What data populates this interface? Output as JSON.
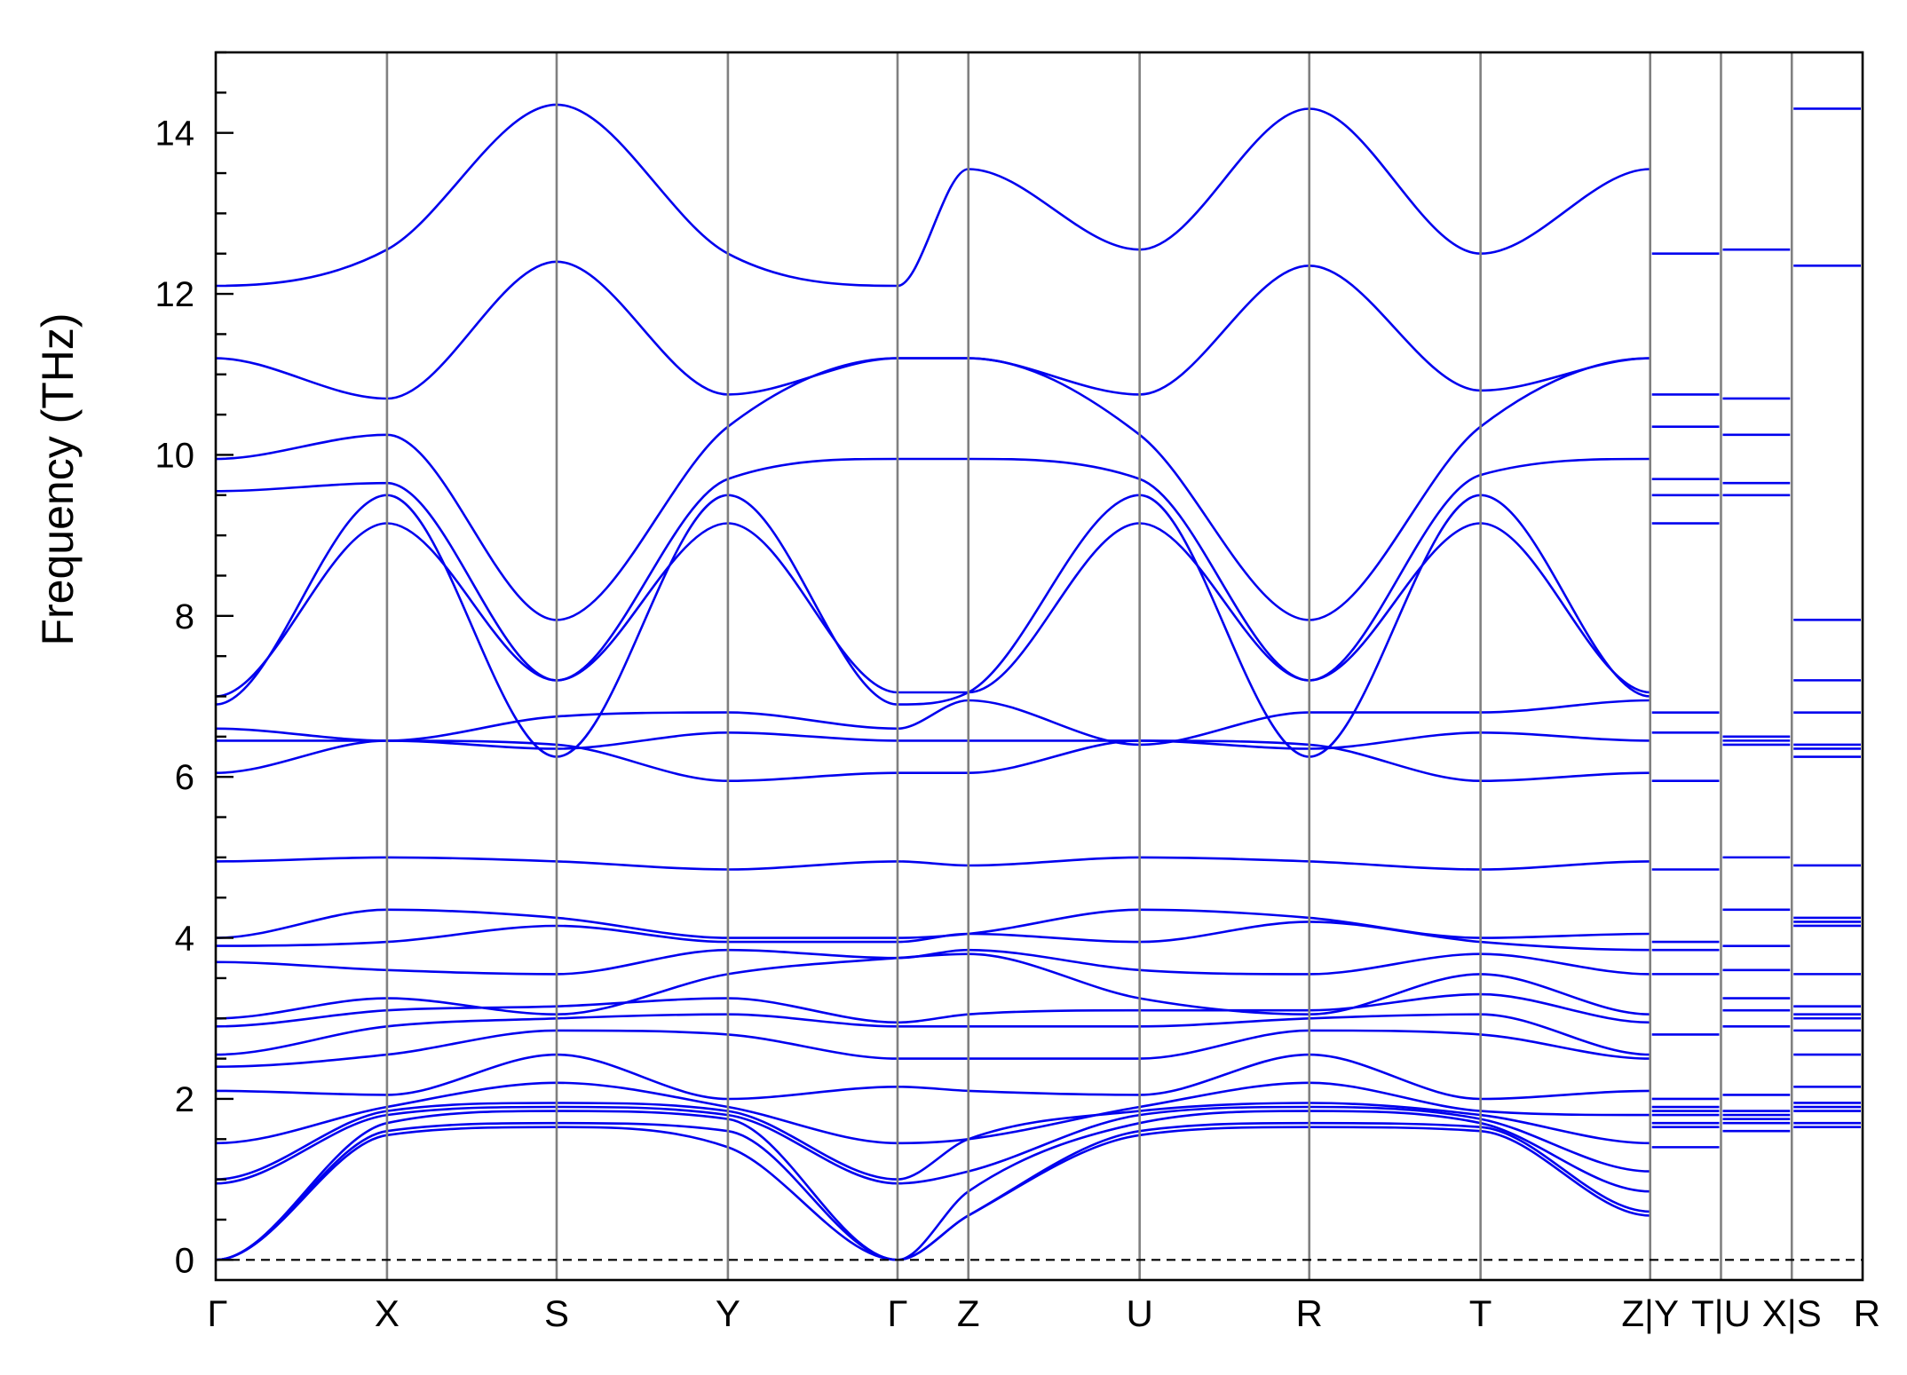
{
  "chart_data": {
    "type": "line",
    "title": "",
    "ylabel": "Frequency (THz)",
    "xlabel": "",
    "ylim": [
      -0.25,
      15
    ],
    "y_ticks": [
      0,
      2,
      4,
      6,
      8,
      10,
      12,
      14
    ],
    "y_minor_step": 0.5,
    "x_points": [
      {
        "label": "Γ",
        "pos": 0
      },
      {
        "label": "X",
        "pos": 0.104
      },
      {
        "label": "S",
        "pos": 0.207
      },
      {
        "label": "Y",
        "pos": 0.311
      },
      {
        "label": "Γ",
        "pos": 0.414
      },
      {
        "label": "Z",
        "pos": 0.457
      },
      {
        "label": "U",
        "pos": 0.561
      },
      {
        "label": "R",
        "pos": 0.664
      },
      {
        "label": "T",
        "pos": 0.768
      },
      {
        "label": "Z|Y",
        "pos": 0.871
      },
      {
        "label": "T|U",
        "pos": 0.914
      },
      {
        "label": "X|S",
        "pos": 0.957
      },
      {
        "label": "R",
        "pos": 1.0
      }
    ],
    "zero_line": 0,
    "colors": {
      "bands": "#0000ee",
      "vlines": "#808080",
      "zero": "#000000"
    },
    "x": [
      0,
      0.104,
      0.207,
      0.311,
      0.414,
      0.457,
      0.561,
      0.664,
      0.768,
      0.871
    ],
    "series": [
      {
        "values": [
          0.0,
          1.55,
          1.65,
          1.4,
          0.0,
          0.55,
          1.55,
          1.65,
          1.6,
          0.55
        ]
      },
      {
        "values": [
          0.0,
          1.6,
          1.7,
          1.6,
          0.0,
          0.55,
          1.6,
          1.7,
          1.65,
          0.6
        ]
      },
      {
        "values": [
          0.0,
          1.7,
          1.85,
          1.75,
          0.0,
          0.85,
          1.7,
          1.85,
          1.7,
          0.85
        ]
      },
      {
        "values": [
          0.95,
          1.8,
          1.9,
          1.8,
          0.95,
          1.1,
          1.8,
          1.9,
          1.75,
          1.1
        ]
      },
      {
        "values": [
          1.0,
          1.85,
          1.95,
          1.85,
          1.0,
          1.5,
          1.85,
          1.95,
          1.8,
          1.45
        ]
      },
      {
        "values": [
          1.45,
          1.9,
          2.2,
          1.9,
          1.45,
          1.5,
          1.9,
          2.2,
          1.85,
          1.8
        ]
      },
      {
        "values": [
          2.1,
          2.05,
          2.55,
          2.0,
          2.15,
          2.1,
          2.05,
          2.55,
          2.0,
          2.1
        ]
      },
      {
        "values": [
          2.4,
          2.55,
          2.85,
          2.8,
          2.5,
          2.5,
          2.5,
          2.85,
          2.8,
          2.5
        ]
      },
      {
        "values": [
          2.55,
          2.9,
          3.0,
          3.05,
          2.9,
          2.9,
          2.9,
          3.0,
          3.05,
          2.55
        ]
      },
      {
        "values": [
          2.9,
          3.1,
          3.15,
          3.25,
          2.95,
          3.05,
          3.1,
          3.1,
          3.3,
          2.95
        ]
      },
      {
        "values": [
          3.0,
          3.25,
          3.05,
          3.55,
          3.75,
          3.8,
          3.25,
          3.05,
          3.55,
          3.05
        ]
      },
      {
        "values": [
          3.7,
          3.6,
          3.55,
          3.85,
          3.75,
          3.85,
          3.6,
          3.55,
          3.8,
          3.55
        ]
      },
      {
        "values": [
          3.9,
          3.95,
          4.15,
          3.95,
          3.95,
          4.05,
          3.95,
          4.2,
          3.95,
          3.85
        ]
      },
      {
        "values": [
          4.0,
          4.35,
          4.25,
          4.0,
          4.0,
          4.05,
          4.35,
          4.25,
          4.0,
          4.05
        ]
      },
      {
        "values": [
          4.95,
          5.0,
          4.95,
          4.85,
          4.95,
          4.9,
          5.0,
          4.95,
          4.85,
          4.95
        ]
      },
      {
        "values": [
          6.05,
          6.45,
          6.4,
          5.95,
          6.05,
          6.05,
          6.45,
          6.4,
          5.95,
          6.05
        ]
      },
      {
        "values": [
          6.45,
          6.45,
          6.35,
          6.55,
          6.45,
          6.45,
          6.45,
          6.35,
          6.55,
          6.45
        ]
      },
      {
        "values": [
          6.6,
          6.45,
          6.75,
          6.8,
          6.6,
          6.95,
          6.4,
          6.8,
          6.8,
          6.95
        ]
      },
      {
        "values": [
          6.9,
          9.5,
          6.25,
          9.5,
          6.9,
          7.05,
          9.5,
          6.25,
          9.5,
          7.0
        ]
      },
      {
        "values": [
          7.0,
          9.15,
          7.2,
          9.15,
          7.05,
          7.05,
          9.15,
          7.2,
          9.15,
          7.05
        ]
      },
      {
        "values": [
          9.55,
          9.65,
          7.2,
          9.7,
          9.95,
          9.95,
          9.7,
          7.2,
          9.75,
          9.95
        ]
      },
      {
        "values": [
          9.95,
          10.25,
          7.95,
          10.35,
          11.2,
          11.2,
          10.25,
          7.95,
          10.35,
          11.2
        ]
      },
      {
        "values": [
          11.2,
          10.7,
          12.4,
          10.75,
          11.2,
          11.2,
          10.75,
          12.35,
          10.8,
          11.2
        ]
      },
      {
        "values": [
          12.1,
          12.55,
          14.35,
          12.5,
          12.1,
          13.55,
          12.55,
          14.3,
          12.5,
          13.55
        ]
      }
    ],
    "segment_values": [
      [
        1.4,
        1.65,
        1.7,
        1.8,
        1.85,
        1.9,
        2.0,
        2.8,
        3.55,
        3.85,
        3.95,
        4.85,
        5.95,
        6.55,
        6.8,
        9.15,
        9.5,
        9.7,
        10.35,
        10.75,
        12.5
      ],
      [
        1.6,
        1.7,
        1.75,
        1.8,
        1.85,
        2.05,
        2.9,
        3.1,
        3.25,
        3.6,
        3.9,
        4.35,
        5.0,
        6.4,
        6.45,
        6.5,
        9.5,
        9.65,
        10.25,
        10.7,
        12.55
      ],
      [
        1.65,
        1.7,
        1.85,
        1.9,
        1.95,
        2.15,
        2.55,
        2.85,
        3.0,
        3.05,
        3.15,
        3.55,
        4.15,
        4.2,
        4.25,
        4.9,
        6.25,
        6.35,
        6.4,
        6.8,
        7.2,
        7.95,
        12.35,
        14.3
      ]
    ]
  }
}
